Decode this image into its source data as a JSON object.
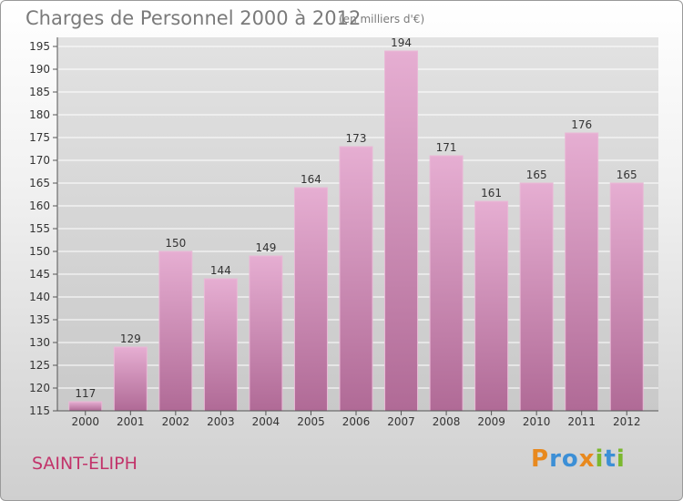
{
  "chart_data": {
    "type": "bar",
    "title": "Charges de Personnel 2000 à 2012",
    "subtitle": "(en milliers d'€)",
    "categories": [
      "2000",
      "2001",
      "2002",
      "2003",
      "2004",
      "2005",
      "2006",
      "2007",
      "2008",
      "2009",
      "2010",
      "2011",
      "2012"
    ],
    "values": [
      117,
      129,
      150,
      144,
      149,
      164,
      173,
      194,
      171,
      161,
      165,
      176,
      165
    ],
    "ylim": [
      115,
      195
    ],
    "yticks": [
      115,
      120,
      125,
      130,
      135,
      140,
      145,
      150,
      155,
      160,
      165,
      170,
      175,
      180,
      185,
      190,
      195
    ],
    "grid": true,
    "bar_color": "#e0a3c8"
  },
  "footer": {
    "commune": "SAINT-ÉLIPH",
    "logo_letters": [
      {
        "ch": "P",
        "color": "#e8891e"
      },
      {
        "ch": "r",
        "color": "#3c8fd6"
      },
      {
        "ch": "o",
        "color": "#3c8fd6"
      },
      {
        "ch": "x",
        "color": "#e8891e"
      },
      {
        "ch": "i",
        "color": "#7bb82e"
      },
      {
        "ch": "t",
        "color": "#3c8fd6"
      },
      {
        "ch": "i",
        "color": "#7bb82e"
      }
    ]
  }
}
